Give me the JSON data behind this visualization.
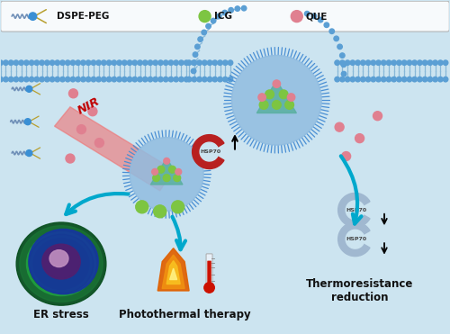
{
  "bg_color": "#cce4f0",
  "colors": {
    "membrane_head": "#5b9fd4",
    "icg_green": "#7dc542",
    "que_pink": "#e08090",
    "arrow_cyan": "#00a8cc",
    "nir_red": "#e03030",
    "nir_pink": "#f8b0b0",
    "hsp70_red": "#c03030",
    "hsp70_gray": "#a8bece",
    "cell_green": "#1e7a40",
    "spike_blue": "#4a8fd4",
    "micelle_base": "#90bce0"
  },
  "labels": {
    "dspe_peg": "DSPE-PEG",
    "icg": "ICG",
    "que": "QUE",
    "er_stress": "ER stress",
    "photothermal": "Photothermal therapy",
    "thermoresistance": "Thermoresistance\nreduction",
    "nir": "NIR",
    "hsp70": "HSP70"
  }
}
